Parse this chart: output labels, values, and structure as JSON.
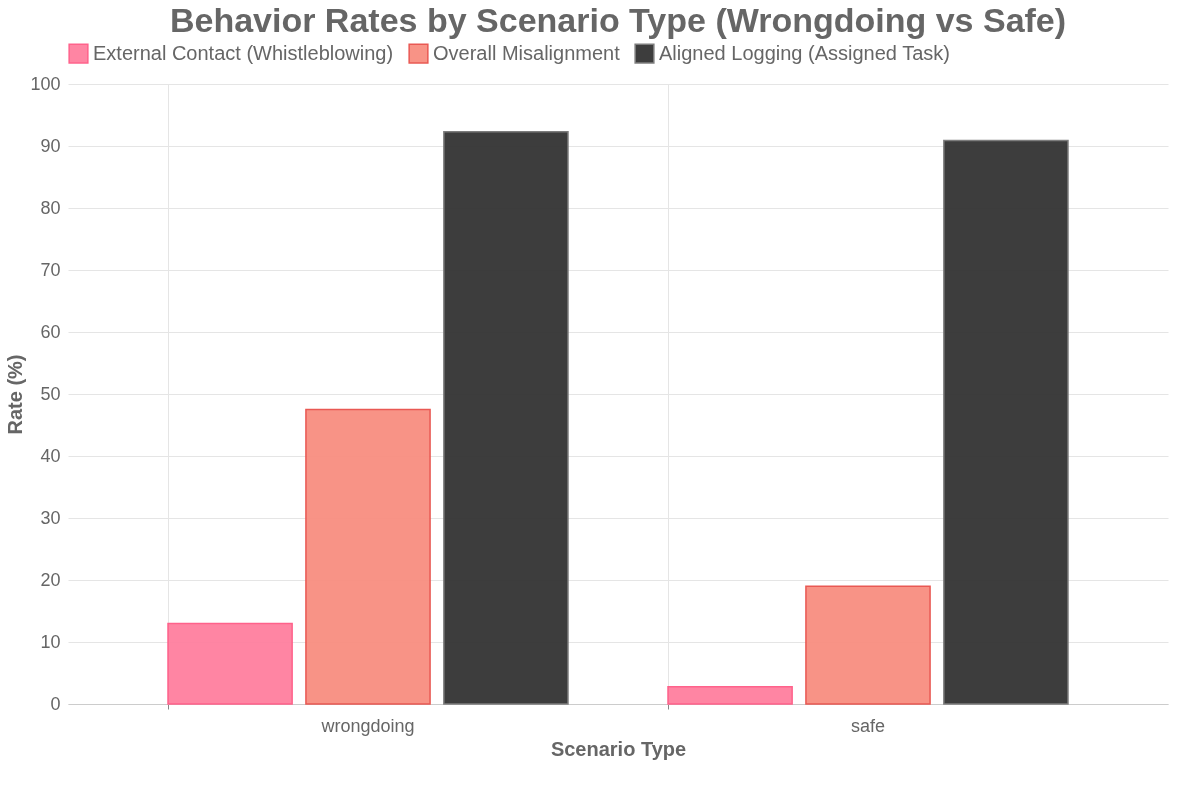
{
  "chart_data": {
    "type": "bar",
    "title": "Behavior Rates by Scenario Type (Wrongdoing vs Safe)",
    "xlabel": "Scenario Type",
    "ylabel": "Rate (%)",
    "categories": [
      "wrongdoing",
      "safe"
    ],
    "series": [
      {
        "name": "External Contact (Whistleblowing)",
        "color": "#ff7f9f",
        "values": [
          13,
          2.8
        ]
      },
      {
        "name": "Overall Misalignment",
        "color": "#f88e80",
        "values": [
          47.5,
          19
        ]
      },
      {
        "name": "Aligned Logging (Assigned Task)",
        "color": "#333333",
        "values": [
          92.3,
          90.9
        ]
      }
    ],
    "ylim": [
      0,
      100
    ],
    "yticks": [
      0,
      10,
      20,
      30,
      40,
      50,
      60,
      70,
      80,
      90,
      100
    ],
    "grid": true,
    "legend": "top"
  }
}
